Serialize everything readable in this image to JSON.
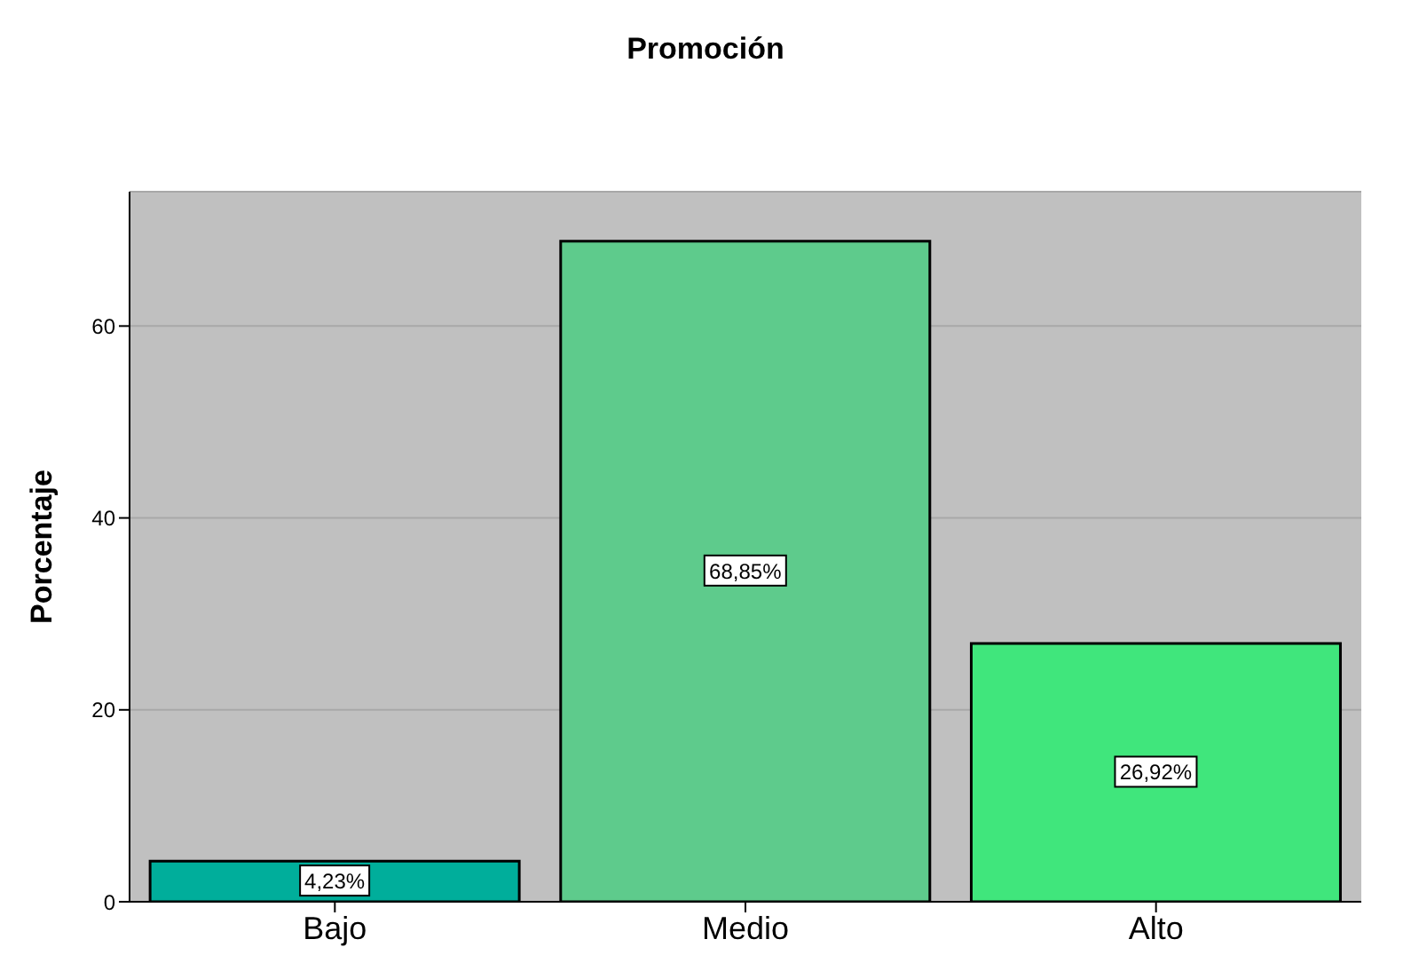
{
  "chart_data": {
    "type": "bar",
    "title": "Promoción",
    "ylabel": "Porcentaje",
    "categories": [
      "Bajo",
      "Medio",
      "Alto"
    ],
    "values": [
      4.23,
      68.85,
      26.92
    ],
    "colors": [
      "#00ae9b",
      "#5ecb8c",
      "#40e67c"
    ],
    "value_labels": [
      "4,23%",
      "68,85%",
      "26,92%"
    ],
    "ylim": [
      0,
      74
    ],
    "yticks": [
      0,
      20,
      40,
      60
    ],
    "grid": "y"
  }
}
